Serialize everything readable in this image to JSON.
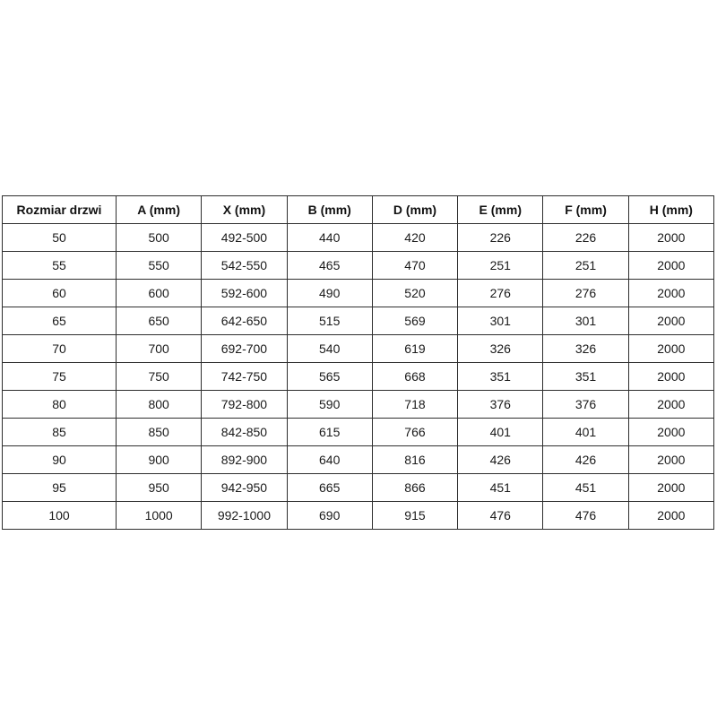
{
  "page": {
    "background_color": "#ffffff",
    "border_color": "#2e2e2e",
    "text_color": "#1a1a1a"
  },
  "chart_data": {
    "type": "table",
    "title": "",
    "columns": [
      "Rozmiar drzwi",
      "A (mm)",
      "X (mm)",
      "B (mm)",
      "D (mm)",
      "E (mm)",
      "F (mm)",
      "H (mm)"
    ],
    "rows": [
      [
        "50",
        "500",
        "492-500",
        "440",
        "420",
        "226",
        "226",
        "2000"
      ],
      [
        "55",
        "550",
        "542-550",
        "465",
        "470",
        "251",
        "251",
        "2000"
      ],
      [
        "60",
        "600",
        "592-600",
        "490",
        "520",
        "276",
        "276",
        "2000"
      ],
      [
        "65",
        "650",
        "642-650",
        "515",
        "569",
        "301",
        "301",
        "2000"
      ],
      [
        "70",
        "700",
        "692-700",
        "540",
        "619",
        "326",
        "326",
        "2000"
      ],
      [
        "75",
        "750",
        "742-750",
        "565",
        "668",
        "351",
        "351",
        "2000"
      ],
      [
        "80",
        "800",
        "792-800",
        "590",
        "718",
        "376",
        "376",
        "2000"
      ],
      [
        "85",
        "850",
        "842-850",
        "615",
        "766",
        "401",
        "401",
        "2000"
      ],
      [
        "90",
        "900",
        "892-900",
        "640",
        "816",
        "426",
        "426",
        "2000"
      ],
      [
        "95",
        "950",
        "942-950",
        "665",
        "866",
        "451",
        "451",
        "2000"
      ],
      [
        "100",
        "1000",
        "992-1000",
        "690",
        "915",
        "476",
        "476",
        "2000"
      ]
    ],
    "layout": {
      "grid": true,
      "header_bold": true
    }
  }
}
